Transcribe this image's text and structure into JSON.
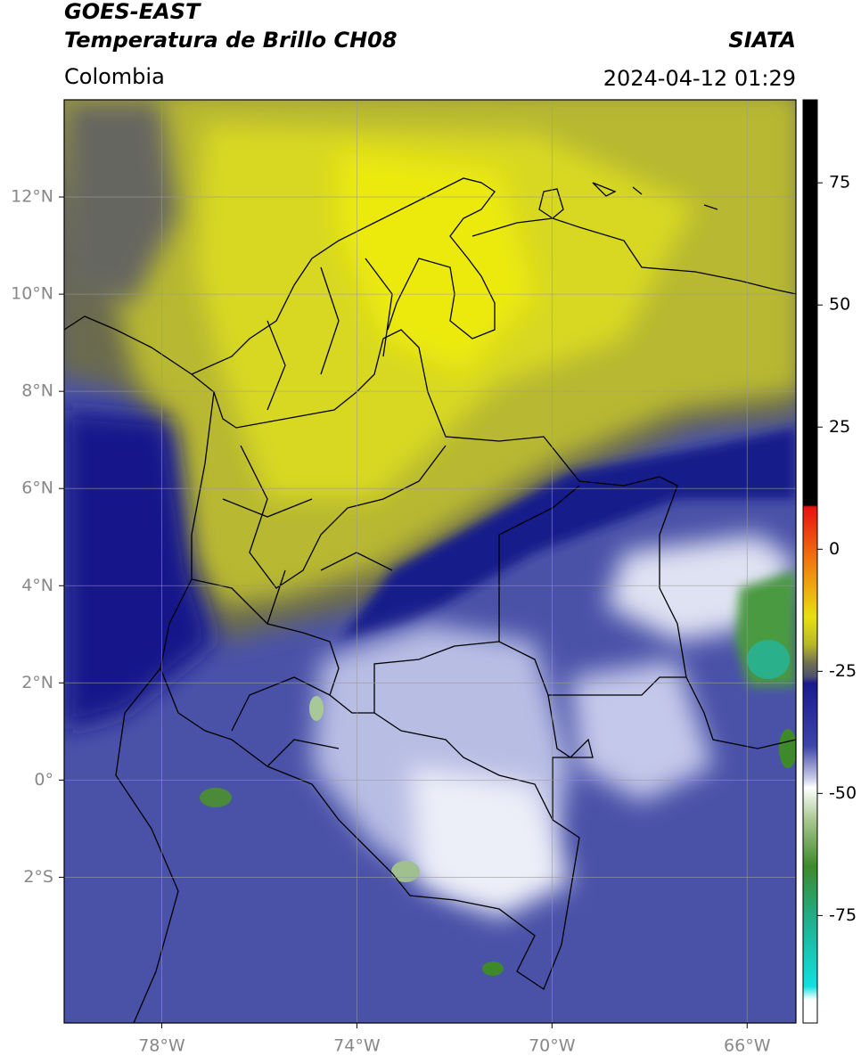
{
  "header": {
    "title": "GOES-EAST",
    "subtitle": "Temperatura de Brillo CH08",
    "region": "Colombia",
    "source": "SIATA",
    "datetime": "2024-04-12 01:29"
  },
  "map": {
    "xlim": [
      -80,
      -65
    ],
    "ylim": [
      -5,
      14
    ],
    "xticks": [
      {
        "value": -78,
        "label": "78°W"
      },
      {
        "value": -74,
        "label": "74°W"
      },
      {
        "value": -70,
        "label": "70°W"
      },
      {
        "value": -66,
        "label": "66°W"
      }
    ],
    "yticks": [
      {
        "value": 12,
        "label": "12°N"
      },
      {
        "value": 10,
        "label": "10°N"
      },
      {
        "value": 8,
        "label": "8°N"
      },
      {
        "value": 6,
        "label": "6°N"
      },
      {
        "value": 4,
        "label": "4°N"
      },
      {
        "value": 2,
        "label": "2°N"
      },
      {
        "value": 0,
        "label": "0°"
      },
      {
        "value": -2,
        "label": "2°S"
      }
    ],
    "grid": true
  },
  "colorbar": {
    "lim": [
      -97,
      92
    ],
    "ticks": [
      75,
      50,
      25,
      0,
      -25,
      -50,
      -75
    ]
  }
}
